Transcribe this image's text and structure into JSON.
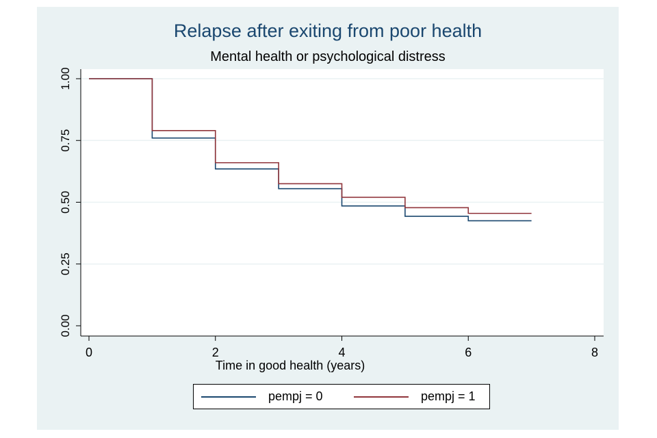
{
  "chart_data": {
    "type": "line",
    "step": true,
    "title": "Relapse after exiting from poor health",
    "subtitle": "Mental health or psychological distress",
    "xlabel": "Time in good health (years)",
    "ylabel": "",
    "xlim": [
      0,
      8
    ],
    "ylim": [
      0,
      1
    ],
    "x_ticks": [
      0,
      2,
      4,
      6,
      8
    ],
    "x_tick_labels": [
      "0",
      "2",
      "4",
      "6",
      "8"
    ],
    "y_ticks": [
      0,
      0.25,
      0.5,
      0.75,
      1
    ],
    "y_tick_labels": [
      "0.00",
      "0.25",
      "0.50",
      "0.75",
      "1.00"
    ],
    "grid": "horizontal",
    "legend_position": "bottom",
    "x": [
      0,
      1,
      2,
      3,
      4,
      5,
      6,
      7
    ],
    "series": [
      {
        "name": "pempj = 0",
        "color": "#1a476f",
        "values": [
          1.0,
          0.76,
          0.635,
          0.555,
          0.485,
          0.443,
          0.425,
          0.425
        ]
      },
      {
        "name": "pempj = 1",
        "color": "#90353b",
        "values": [
          1.0,
          0.79,
          0.66,
          0.575,
          0.52,
          0.478,
          0.455,
          0.455
        ]
      }
    ]
  },
  "colors": {
    "graph_background": "#eaf2f3",
    "plot_background": "#ffffff",
    "title": "#1a476f",
    "gridline": "#eaf2f3",
    "axis": "#000000"
  }
}
